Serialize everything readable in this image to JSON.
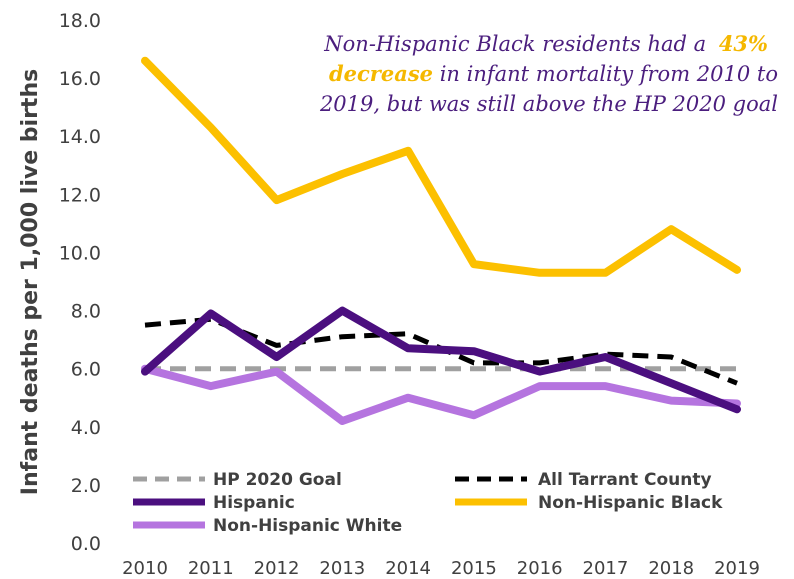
{
  "chart_data": {
    "type": "line",
    "title": "",
    "xlabel": "",
    "ylabel": "Infant deaths per 1,000 live births",
    "ylim": [
      0,
      18
    ],
    "y_ticks": [
      "0.0",
      "2.0",
      "4.0",
      "6.0",
      "8.0",
      "10.0",
      "12.0",
      "14.0",
      "16.0",
      "18.0"
    ],
    "x": [
      "2010",
      "2011",
      "2012",
      "2013",
      "2014",
      "2015",
      "2016",
      "2017",
      "2018",
      "2019"
    ],
    "grid": false,
    "legend_position": "bottom",
    "series": [
      {
        "name": "HP 2020 Goal",
        "color": "#a0a0a0",
        "dash": "dashed",
        "values": [
          6.0,
          6.0,
          6.0,
          6.0,
          6.0,
          6.0,
          6.0,
          6.0,
          6.0,
          6.0
        ]
      },
      {
        "name": "All Tarrant County",
        "color": "#000000",
        "dash": "dashed",
        "values": [
          7.5,
          7.7,
          6.8,
          7.1,
          7.2,
          6.2,
          6.2,
          6.5,
          6.4,
          5.5
        ]
      },
      {
        "name": "Hispanic",
        "color": "#4b0f7f",
        "dash": "solid",
        "values": [
          5.9,
          7.9,
          6.4,
          8.0,
          6.7,
          6.6,
          5.9,
          6.4,
          5.5,
          4.6
        ]
      },
      {
        "name": "Non-Hispanic Black",
        "color": "#fcc000",
        "dash": "solid",
        "values": [
          16.6,
          14.3,
          11.8,
          12.7,
          13.5,
          9.6,
          9.3,
          9.3,
          10.8,
          9.4
        ]
      },
      {
        "name": "Non-Hispanic White",
        "color": "#b574df",
        "dash": "solid",
        "values": [
          6.0,
          5.4,
          5.9,
          4.2,
          5.0,
          4.4,
          5.4,
          5.4,
          4.9,
          4.8
        ]
      }
    ],
    "annotation": {
      "line1_pre": "Non-Hispanic Black residents had a ",
      "line1_highlight": "43%",
      "line2_highlight": "decrease",
      "line2_post": " in infant mortality from 2010 to",
      "line3": "2019, but was still above the HP 2020 goal"
    }
  }
}
